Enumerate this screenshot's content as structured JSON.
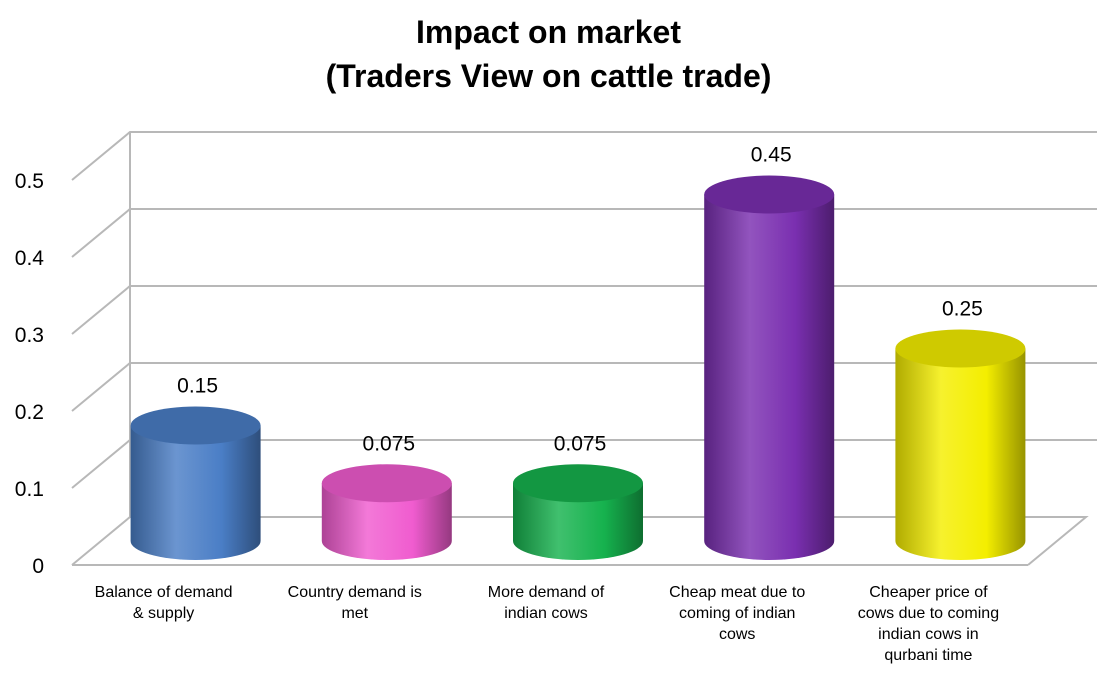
{
  "chart_data": {
    "type": "bar",
    "style": "3d-cylinder",
    "title": [
      "Impact on market",
      "(Traders View on cattle trade)"
    ],
    "categories": [
      [
        "Balance of demand",
        "& supply"
      ],
      [
        "Country demand is",
        "met"
      ],
      [
        "More demand of",
        "indian cows"
      ],
      [
        "Cheap meat due to",
        "coming of indian",
        "cows"
      ],
      [
        "Cheaper price of",
        "cows due to coming",
        "indian cows in",
        "qurbani time"
      ]
    ],
    "values": [
      0.15,
      0.075,
      0.075,
      0.45,
      0.25
    ],
    "data_labels": [
      "0.15",
      "0.075",
      "0.075",
      "0.45",
      "0.25"
    ],
    "colors": [
      "#4a7ec6",
      "#f05ccf",
      "#16b24e",
      "#7a2fb0",
      "#f4ee00"
    ],
    "yticks": [
      "0",
      "0.1",
      "0.2",
      "0.3",
      "0.4",
      "0.5"
    ],
    "ylim": [
      0,
      0.5
    ],
    "grid": true,
    "legend": "none"
  }
}
